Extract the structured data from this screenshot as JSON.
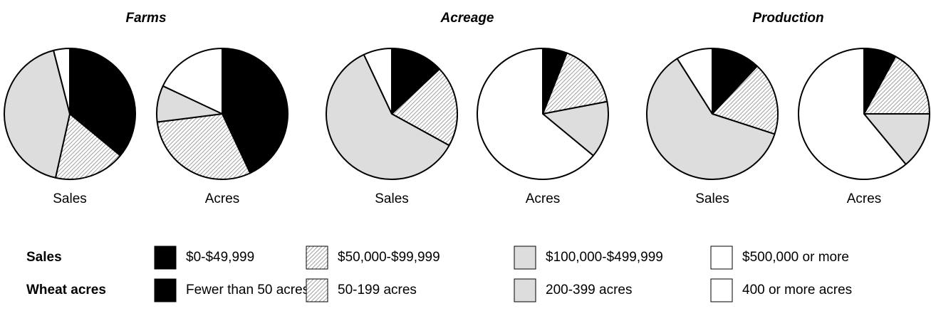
{
  "chart_data": [
    {
      "type": "pie",
      "title": "Farms",
      "pies": [
        {
          "label": "Sales",
          "values": [
            36,
            17.5,
            42.5,
            4
          ]
        },
        {
          "label": "Acres",
          "values": [
            43,
            30,
            9,
            18
          ]
        }
      ]
    },
    {
      "type": "pie",
      "title": "Acreage",
      "pies": [
        {
          "label": "Sales",
          "values": [
            13,
            20,
            60,
            7
          ]
        },
        {
          "label": "Acres",
          "values": [
            6,
            16,
            14,
            64
          ]
        }
      ]
    },
    {
      "type": "pie",
      "title": "Production",
      "pies": [
        {
          "label": "Sales",
          "values": [
            12,
            18,
            61,
            9
          ]
        },
        {
          "label": "Acres",
          "values": [
            8,
            17,
            14,
            61
          ]
        }
      ]
    }
  ],
  "legend": {
    "fills": [
      "#000000",
      "hatch",
      "#dddddd",
      "#ffffff"
    ],
    "rows": [
      {
        "name": "Sales",
        "entries": [
          "$0-$49,999",
          "$50,000-$99,999",
          "$100,000-$499,999",
          "$500,000 or more"
        ]
      },
      {
        "name": "Wheat acres",
        "entries": [
          "Fewer than 50 acres",
          "50-199 acres",
          "200-399 acres",
          "400 or more acres"
        ]
      }
    ]
  }
}
